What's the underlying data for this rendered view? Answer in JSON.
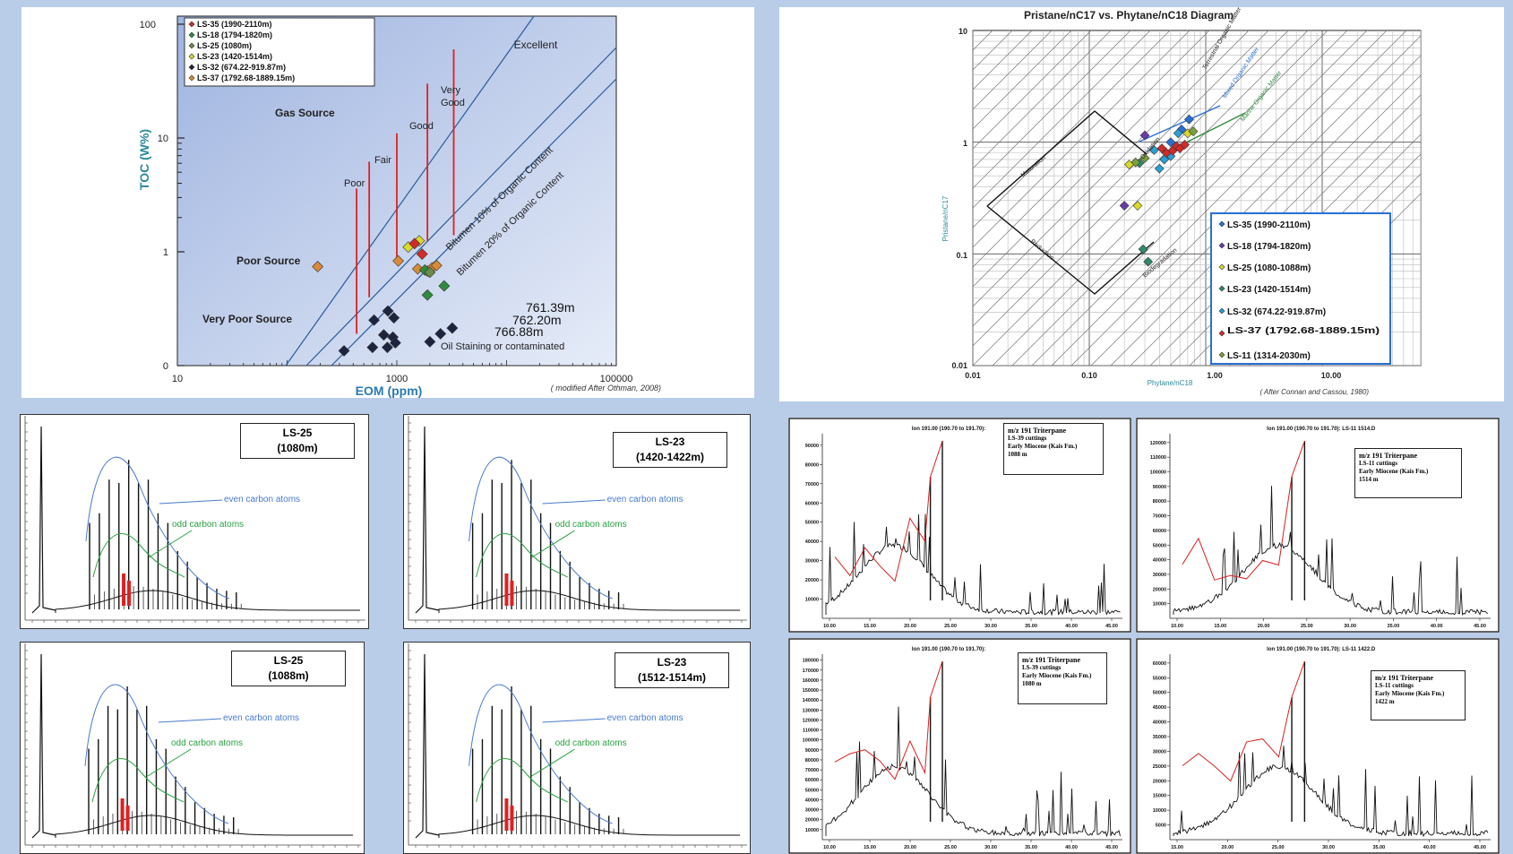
{
  "chart_data": [
    {
      "type": "scatter",
      "title": "",
      "xlabel": "EOM (ppm)",
      "ylabel": "TOC (W%)",
      "xscale": "log",
      "xlim": [
        10,
        100000
      ],
      "x_ticks": [
        "10",
        "1000",
        "100000"
      ],
      "y_ticks": [
        "0",
        "1",
        "10",
        "100"
      ],
      "credit": "( modified After Othman, 2008)",
      "zones": [
        "Gas Source",
        "Poor Source",
        "Very Poor Source",
        "Excellent",
        "Very",
        "Good",
        "Good",
        "Fair",
        "Poor",
        "Oil Staining or contaminated"
      ],
      "lines": [
        "Bitumen 10% of Organic Content",
        "Bitumen 20% of Organic Content"
      ],
      "annotations": [
        "761.39m",
        "762.20m",
        "766.88m"
      ],
      "legend_position": "top-left",
      "legend": [
        {
          "name": "LS-35 (1990-2110m)",
          "color": "#d22a2a"
        },
        {
          "name": "LS-18 (1794-1820m)",
          "color": "#2e8b3e"
        },
        {
          "name": "LS-25 (1080m)",
          "color": "#6a8a4a"
        },
        {
          "name": "LS-23 (1420-1514m)",
          "color": "#d9d92a"
        },
        {
          "name": "LS-32 (674.22-919.87m)",
          "color": "#1c2440"
        },
        {
          "name": "LS-37 (1792.68-1889.15m)",
          "color": "#d98a3a"
        }
      ],
      "series": [
        {
          "name": "LS-32 (674.22-919.87m)",
          "points": [
            [
              330,
              0.13
            ],
            [
              620,
              0.4
            ],
            [
              830,
              0.48
            ],
            [
              940,
              0.42
            ],
            [
              760,
              0.27
            ],
            [
              920,
              0.25
            ],
            [
              970,
              0.2
            ],
            [
              600,
              0.16
            ],
            [
              820,
              0.16
            ],
            [
              3200,
              0.33
            ],
            [
              2500,
              0.28
            ],
            [
              2000,
              0.21
            ]
          ]
        },
        {
          "name": "LS-37 (1792.68-1889.15m)",
          "points": [
            [
              190,
              0.87
            ],
            [
              1030,
              0.92
            ],
            [
              1550,
              0.85
            ],
            [
              1900,
              0.83
            ],
            [
              2100,
              0.86
            ],
            [
              2300,
              0.88
            ]
          ]
        },
        {
          "name": "LS-23 (1420-1514m)",
          "points": [
            [
              1270,
              1.1
            ],
            [
              1600,
              1.25
            ]
          ]
        },
        {
          "name": "LS-35 (1990-2110m)",
          "points": [
            [
              1450,
              1.18
            ],
            [
              1700,
              0.98
            ]
          ]
        },
        {
          "name": "LS-18 (1794-1820m)",
          "points": [
            [
              1800,
              0.84
            ],
            [
              2700,
              0.7
            ],
            [
              1900,
              0.62
            ]
          ]
        },
        {
          "name": "LS-25 (1080m)",
          "points": [
            [
              2000,
              0.82
            ]
          ]
        }
      ]
    },
    {
      "type": "scatter",
      "title": "Pristane/nC17 vs. Phytane/nC18 Diagram",
      "xlabel": "Phytane/nC18",
      "ylabel": "Pristane/nC17",
      "xscale": "log",
      "yscale": "log",
      "xlim": [
        0.01,
        10
      ],
      "ylim": [
        0.01,
        10
      ],
      "x_ticks": [
        "0.01",
        "0.10",
        "1.00",
        "10.00"
      ],
      "y_ticks": [
        "0.01",
        "0.1",
        "1",
        "10"
      ],
      "credit": "( After Connan and Cassou, 1980)",
      "region_labels": [
        "Maturation",
        "Reduction",
        "Biodegradation",
        "Oxidation",
        "Terrestrial Organic Matter",
        "Mixed Organic Matter",
        "Marine Organic Matter"
      ],
      "legend_position": "bottom-right",
      "legend": [
        {
          "name": "LS-35 (1990-2110m)",
          "color": "#2a6fd6"
        },
        {
          "name": "LS-18 (1794-1820m)",
          "color": "#6a3aa8"
        },
        {
          "name": "LS-25 (1080-1088m)",
          "color": "#d9d92a"
        },
        {
          "name": "LS-23 (1420-1514m)",
          "color": "#2e8b6e"
        },
        {
          "name": "LS-32 (674.22-919.87m)",
          "color": "#2aa0d6"
        },
        {
          "name": "LS-37 (1792.68-1889.15m)",
          "color": "#d22a2a"
        },
        {
          "name": "LS-11 (1314-2030m)",
          "color": "#7aa03a"
        }
      ],
      "series": [
        {
          "name": "LS-35 (1990-2110m)",
          "points": [
            [
              0.5,
              1.0
            ],
            [
              0.62,
              1.3
            ],
            [
              0.72,
              1.6
            ]
          ]
        },
        {
          "name": "LS-18 (1794-1820m)",
          "points": [
            [
              0.3,
              1.15
            ],
            [
              0.2,
              0.27
            ]
          ]
        },
        {
          "name": "LS-25 (1080-1088m)",
          "points": [
            [
              0.22,
              0.63
            ],
            [
              0.26,
              0.27
            ],
            [
              0.7,
              1.2
            ]
          ]
        },
        {
          "name": "LS-23 (1420-1514m)",
          "points": [
            [
              0.27,
              0.65
            ],
            [
              0.29,
              0.11
            ],
            [
              0.32,
              0.085
            ]
          ]
        },
        {
          "name": "LS-32 (674.22-919.87m)",
          "points": [
            [
              0.36,
              0.85
            ],
            [
              0.44,
              0.7
            ],
            [
              0.4,
              0.58
            ],
            [
              0.5,
              0.75
            ],
            [
              0.58,
              1.2
            ]
          ]
        },
        {
          "name": "LS-37 (1792.68-1889.15m)",
          "points": [
            [
              0.42,
              0.88
            ],
            [
              0.46,
              0.8
            ],
            [
              0.52,
              0.84
            ],
            [
              0.56,
              0.92
            ],
            [
              0.6,
              0.88
            ],
            [
              0.66,
              0.95
            ]
          ]
        },
        {
          "name": "LS-11 (1314-2030m)",
          "points": [
            [
              0.25,
              0.66
            ],
            [
              0.3,
              0.72
            ],
            [
              0.78,
              1.25
            ]
          ]
        }
      ]
    },
    {
      "type": "line",
      "subtype": "gas-chromatogram",
      "panels": [
        {
          "well": "LS-25",
          "depth": "(1080m)"
        },
        {
          "well": "LS-23",
          "depth": "(1420-1422m)"
        },
        {
          "well": "LS-25",
          "depth": "(1088m)"
        },
        {
          "well": "LS-23",
          "depth": "(1512-1514m)"
        }
      ],
      "annotations": [
        "even carbon atoms",
        "odd carbon atoms"
      ]
    },
    {
      "type": "line",
      "subtype": "mass-chromatogram",
      "panels": [
        {
          "ion": "Ion 191.00 (190.70 to 191.70):",
          "file": "",
          "title": "m/z 191 Triterpane",
          "well": "LS-39 cuttings",
          "formation": "Early Miocene (Kais Fm.)",
          "depth": "1088 m",
          "y_ticks": [
            "10000",
            "20000",
            "30000",
            "40000",
            "50000",
            "60000",
            "70000",
            "80000",
            "90000"
          ],
          "x_ticks": [
            "10.00",
            "15.00",
            "20.00",
            "25.00",
            "30.00",
            "35.00",
            "40.00",
            "45.00"
          ]
        },
        {
          "ion": "Ion 191.00 (190.70 to 191.70):",
          "file": "LS-11 1514.D",
          "title": "m/z 191 Triterpane",
          "well": "LS-11 cuttings",
          "formation": "Early Miocene (Kais Fm.)",
          "depth": "1514 m",
          "y_ticks": [
            "10000",
            "20000",
            "30000",
            "40000",
            "50000",
            "60000",
            "70000",
            "80000",
            "90000",
            "100000",
            "110000",
            "120000"
          ],
          "x_ticks": [
            "10.00",
            "15.00",
            "20.00",
            "25.00",
            "30.00",
            "35.00",
            "40.00",
            "45.00"
          ]
        },
        {
          "ion": "Ion 191.00 (190.70 to 191.70):",
          "file": "",
          "title": "m/z 191 Triterpane",
          "well": "LS-39 cuttings",
          "formation": "Early Miocene (Kais Fm.)",
          "depth": "1080 m",
          "y_ticks": [
            "10000",
            "20000",
            "30000",
            "40000",
            "50000",
            "60000",
            "70000",
            "80000",
            "90000",
            "100000",
            "110000",
            "120000",
            "130000",
            "140000",
            "150000",
            "160000",
            "170000",
            "180000"
          ],
          "x_ticks": [
            "10.00",
            "15.00",
            "20.00",
            "25.00",
            "30.00",
            "35.00",
            "40.00",
            "45.00"
          ]
        },
        {
          "ion": "Ion 191.00 (190.70 to 191.70):",
          "file": "LS-11 1422.D",
          "title": "m/z 191 Triterpane",
          "well": "LS-11 cuttings",
          "formation": "Early Miocene (Kais Fm.)",
          "depth": "1422 m",
          "y_ticks": [
            "5000",
            "10000",
            "15000",
            "20000",
            "25000",
            "30000",
            "35000",
            "40000",
            "45000",
            "50000",
            "55000",
            "60000"
          ],
          "x_ticks": [
            "15.00",
            "20.00",
            "25.00",
            "30.00",
            "35.00",
            "40.00",
            "45.00"
          ]
        }
      ]
    }
  ]
}
